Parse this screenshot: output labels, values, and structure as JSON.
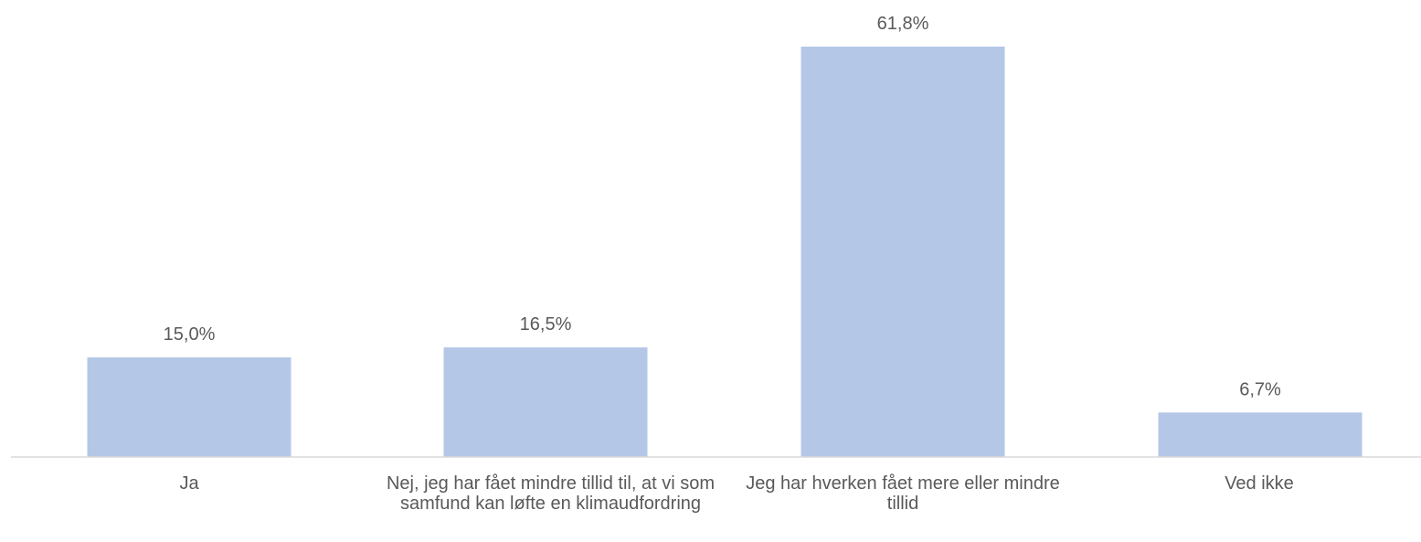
{
  "chart_data": {
    "type": "bar",
    "categories": [
      "Ja",
      "Nej, jeg har fået mindre tillid til, at vi som samfund kan løfte en klimaudfordring",
      "Jeg har hverken fået mere eller mindre tillid",
      "Ved ikke"
    ],
    "values": [
      15.0,
      16.5,
      61.8,
      6.7
    ],
    "data_labels": [
      "15,0%",
      "16,5%",
      "61,8%",
      "6,7%"
    ],
    "ylim": [
      0,
      61.8
    ],
    "grid": false,
    "legend": "none",
    "bar_color": "#b4c7e7",
    "axis_color": "#d9d9d9",
    "text_color": "#595959"
  }
}
